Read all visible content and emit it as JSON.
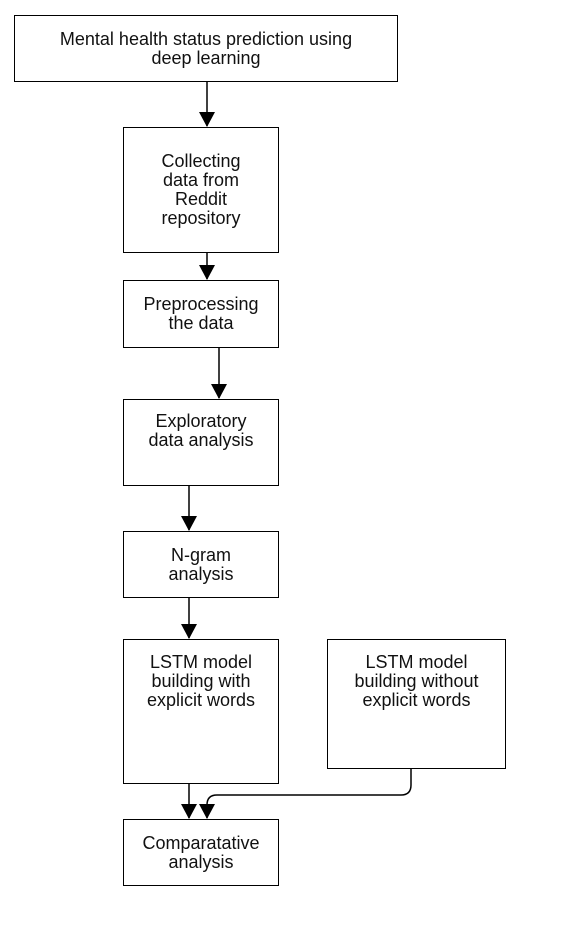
{
  "nodes": {
    "root": "Mental health status prediction using\ndeep learning",
    "collect": "Collecting\ndata from\nReddit\nrepository",
    "preprocess": "Preprocessing\nthe data",
    "eda": "Exploratory\ndata analysis",
    "ngram": "N-gram\nanalysis",
    "lstm_explicit": "LSTM model\nbuilding with\nexplicit words",
    "lstm_no_explicit": "LSTM model\nbuilding without\nexplicit words",
    "compare": "Comparatative\nanalysis"
  },
  "colors": {
    "stroke": "#000000",
    "fill": "#ffffff",
    "text": "#111111"
  }
}
